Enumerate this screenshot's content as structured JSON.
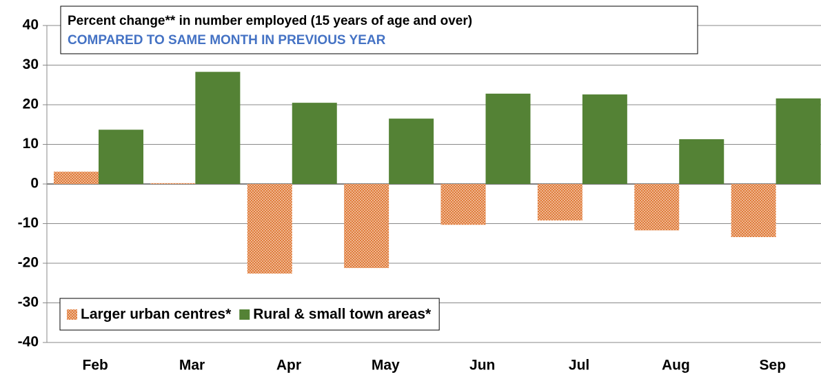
{
  "chart_data": {
    "type": "bar",
    "title": "Percent change** in number employed (15 years of age and over)",
    "subtitle": "COMPARED TO SAME MONTH IN PREVIOUS YEAR",
    "categories": [
      "Feb",
      "Mar",
      "Apr",
      "May",
      "Jun",
      "Jul",
      "Aug",
      "Sep"
    ],
    "series": [
      {
        "name": "Larger urban centres*",
        "color": "#e07b39",
        "pattern": "dots",
        "values": [
          3.1,
          0.2,
          -22.6,
          -21.2,
          -10.3,
          -9.2,
          -11.7,
          -13.4
        ]
      },
      {
        "name": "Rural & small town areas*",
        "color": "#548235",
        "values": [
          13.7,
          28.3,
          20.5,
          16.5,
          22.8,
          22.6,
          11.3,
          21.6
        ]
      }
    ],
    "ylim": [
      -40,
      40
    ],
    "yticks": [
      -40,
      -30,
      -20,
      -10,
      0,
      10,
      20,
      30,
      40
    ],
    "grid": true,
    "legend": "lower left"
  }
}
